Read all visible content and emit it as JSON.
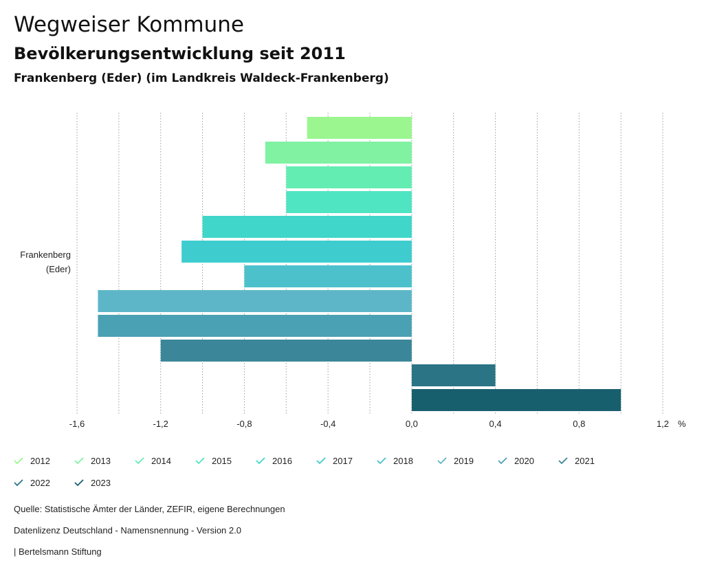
{
  "header": {
    "title": "Wegweiser Kommune",
    "subtitle": "Bevölkerungsentwicklung seit 2011",
    "region": "Frankenberg (Eder) (im Landkreis Waldeck-Frankenberg)"
  },
  "chart_data": {
    "type": "bar",
    "orientation": "horizontal",
    "categories": [
      "Frankenberg (Eder)"
    ],
    "category_label_lines": [
      "Frankenberg",
      "(Eder)"
    ],
    "series": [
      {
        "name": "2012",
        "values": [
          -0.5
        ],
        "color": "#9bf68f"
      },
      {
        "name": "2013",
        "values": [
          -0.7
        ],
        "color": "#80f2a2"
      },
      {
        "name": "2014",
        "values": [
          -0.6
        ],
        "color": "#64edb3"
      },
      {
        "name": "2015",
        "values": [
          -0.6
        ],
        "color": "#4fe4c2"
      },
      {
        "name": "2016",
        "values": [
          -1.0
        ],
        "color": "#40d6c9"
      },
      {
        "name": "2017",
        "values": [
          -1.1
        ],
        "color": "#3ecccf"
      },
      {
        "name": "2018",
        "values": [
          -0.8
        ],
        "color": "#4cc1cc"
      },
      {
        "name": "2019",
        "values": [
          -1.5
        ],
        "color": "#5db6c7"
      },
      {
        "name": "2020",
        "values": [
          -1.5
        ],
        "color": "#4aa1b3"
      },
      {
        "name": "2021",
        "values": [
          -1.2
        ],
        "color": "#3b8799"
      },
      {
        "name": "2022",
        "values": [
          0.4
        ],
        "color": "#2a7485"
      },
      {
        "name": "2023",
        "values": [
          1.0
        ],
        "color": "#185f6e"
      }
    ],
    "xlim": [
      -1.6,
      1.2
    ],
    "ticks": [
      "-1,6",
      "-1,2",
      "-0,8",
      "-0,4",
      "0,0",
      "0,4",
      "0,8",
      "1,2"
    ],
    "tick_values": [
      -1.6,
      -1.2,
      -0.8,
      -0.4,
      0.0,
      0.4,
      0.8,
      1.2
    ],
    "unit_label": "%",
    "grid": true,
    "legend_position": "bottom"
  },
  "footer": {
    "source": "Quelle: Statistische Ämter der Länder, ZEFIR, eigene Berechnungen",
    "license": "Datenlizenz Deutschland - Namensnennung - Version 2.0",
    "publisher": "| Bertelsmann Stiftung"
  }
}
